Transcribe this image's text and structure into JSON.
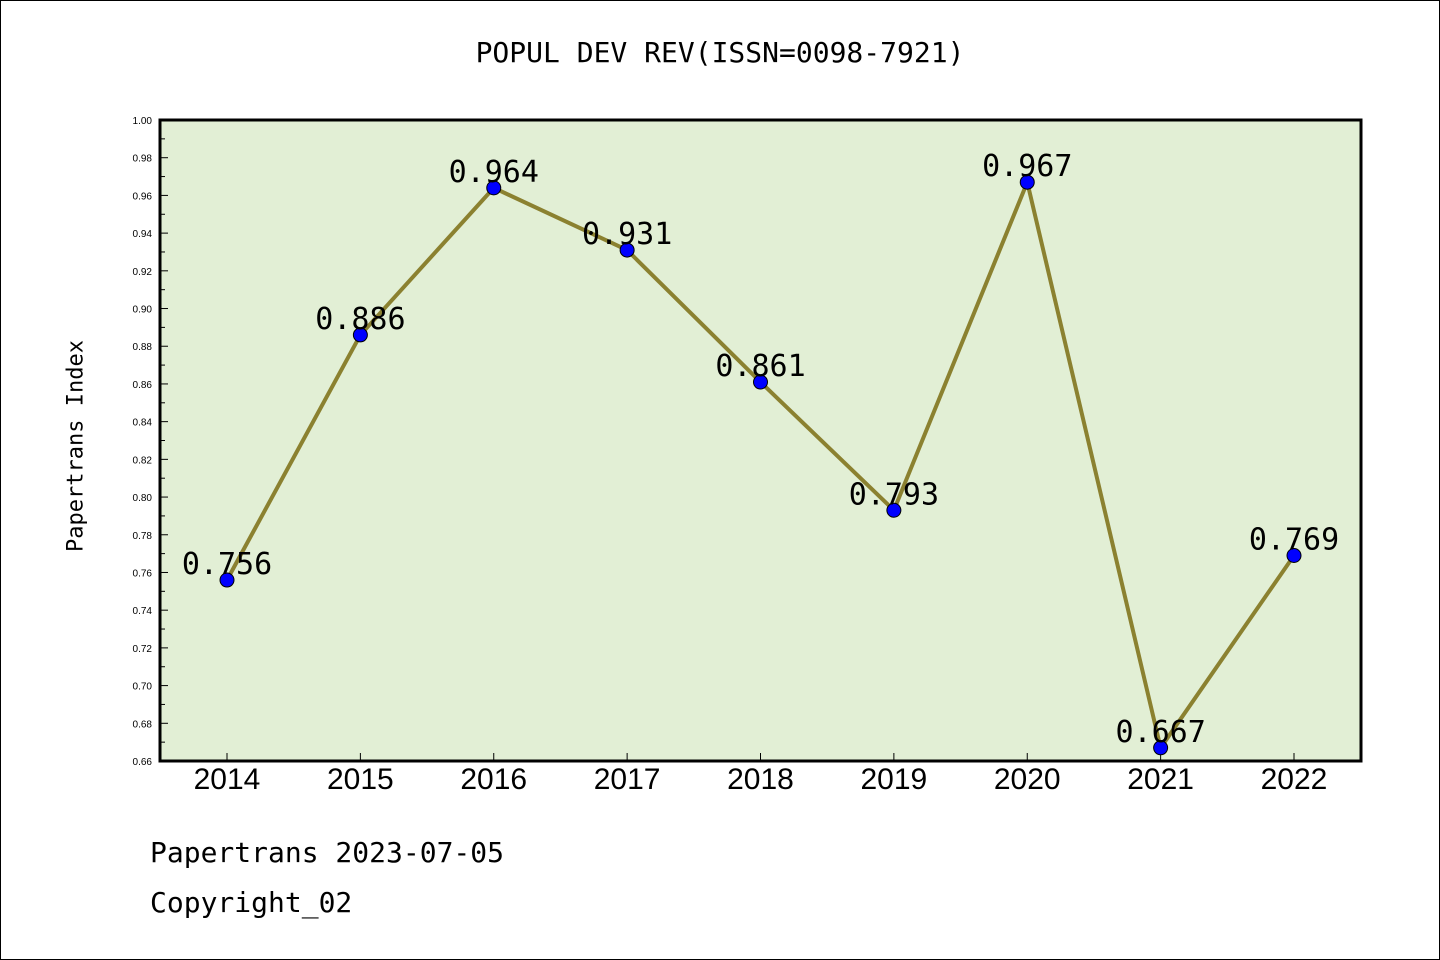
{
  "chart_data": {
    "type": "line",
    "title": "POPUL DEV REV(ISSN=0098-7921)",
    "ylabel": "Papertrans Index",
    "xlabel": "",
    "categories": [
      "2014",
      "2015",
      "2016",
      "2017",
      "2018",
      "2019",
      "2020",
      "2021",
      "2022"
    ],
    "values": [
      0.756,
      0.886,
      0.964,
      0.931,
      0.861,
      0.793,
      0.967,
      0.667,
      0.769
    ],
    "data_labels": [
      "0.756",
      "0.886",
      "0.964",
      "0.931",
      "0.861",
      "0.793",
      "0.967",
      "0.667",
      "0.769"
    ],
    "ylim": [
      0.66,
      1.0
    ],
    "yticks": [
      "0.66",
      "0.68",
      "0.70",
      "0.72",
      "0.74",
      "0.76",
      "0.78",
      "0.80",
      "0.82",
      "0.84",
      "0.86",
      "0.88",
      "0.90",
      "0.92",
      "0.94",
      "0.96",
      "0.98",
      "1.00"
    ],
    "grid": false,
    "colors": {
      "plot_bg": "#e2efd5",
      "line": "#8b8130",
      "marker": "#0000ff"
    }
  },
  "footer": {
    "line1": "Papertrans 2023-07-05",
    "line2": "Copyright_02"
  }
}
